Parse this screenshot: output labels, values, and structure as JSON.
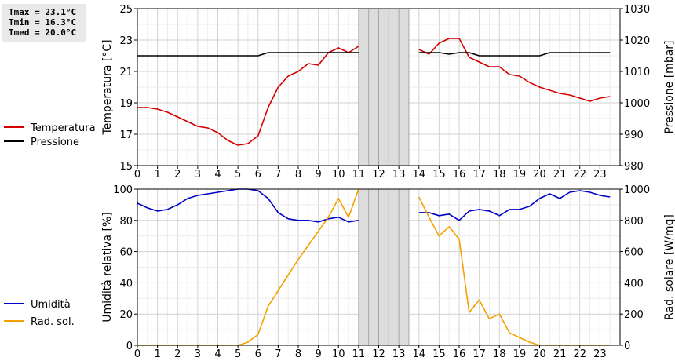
{
  "stats": {
    "tmax": "Tmax = 23.1°C",
    "tmin": "Tmin = 16.3°C",
    "tmed": "Tmed = 20.0°C"
  },
  "chart_data": [
    {
      "type": "line",
      "xlim": [
        0,
        24
      ],
      "x_ticks": [
        "0",
        "1",
        "2",
        "3",
        "4",
        "5",
        "6",
        "7",
        "8",
        "9",
        "10",
        "11",
        "12",
        "13",
        "14",
        "15",
        "16",
        "17",
        "18",
        "19",
        "20",
        "21",
        "22",
        "23"
      ],
      "gap": [
        11,
        13.5
      ],
      "ylabel": "Temperatura [°C]",
      "ylim": [
        15,
        25
      ],
      "y_ticks": [
        "15",
        "17",
        "19",
        "21",
        "23",
        "25"
      ],
      "y2label": "Pressione [mbar]",
      "y2lim": [
        980,
        1030
      ],
      "y2_ticks": [
        "980",
        "990",
        "1000",
        "1010",
        "1020",
        "1030"
      ],
      "grid": true,
      "series": [
        {
          "name": "Temperatura",
          "axis": "left",
          "color": "#d40000",
          "points": [
            [
              0,
              18.7
            ],
            [
              0.5,
              18.7
            ],
            [
              1,
              18.6
            ],
            [
              1.5,
              18.4
            ],
            [
              2,
              18.1
            ],
            [
              2.5,
              17.8
            ],
            [
              3,
              17.5
            ],
            [
              3.5,
              17.4
            ],
            [
              4,
              17.1
            ],
            [
              4.5,
              16.6
            ],
            [
              5,
              16.3
            ],
            [
              5.5,
              16.4
            ],
            [
              6,
              16.9
            ],
            [
              6.5,
              18.7
            ],
            [
              7,
              20.0
            ],
            [
              7.5,
              20.7
            ],
            [
              8,
              21.0
            ],
            [
              8.5,
              21.5
            ],
            [
              9,
              21.4
            ],
            [
              9.5,
              22.2
            ],
            [
              10,
              22.5
            ],
            [
              10.5,
              22.2
            ],
            [
              11,
              22.6
            ],
            null,
            [
              14,
              22.4
            ],
            [
              14.5,
              22.1
            ],
            [
              15,
              22.8
            ],
            [
              15.5,
              23.1
            ],
            [
              16,
              23.1
            ],
            [
              16.5,
              21.9
            ],
            [
              17,
              21.6
            ],
            [
              17.5,
              21.3
            ],
            [
              18,
              21.3
            ],
            [
              18.5,
              20.8
            ],
            [
              19,
              20.7
            ],
            [
              19.5,
              20.3
            ],
            [
              20,
              20.0
            ],
            [
              20.5,
              19.8
            ],
            [
              21,
              19.6
            ],
            [
              21.5,
              19.5
            ],
            [
              22,
              19.3
            ],
            [
              22.5,
              19.1
            ],
            [
              23,
              19.3
            ],
            [
              23.5,
              19.4
            ]
          ]
        },
        {
          "name": "Pressione",
          "axis": "right",
          "color": "#000000",
          "points": [
            [
              0,
              1015
            ],
            [
              6,
              1015
            ],
            [
              6.5,
              1016
            ],
            [
              11,
              1016
            ],
            null,
            [
              14,
              1016
            ],
            [
              15,
              1016
            ],
            [
              15.5,
              1015.5
            ],
            [
              16,
              1016
            ],
            [
              16.5,
              1016
            ],
            [
              17,
              1015
            ],
            [
              20,
              1015
            ],
            [
              20.5,
              1016
            ],
            [
              23.5,
              1016
            ]
          ]
        }
      ]
    },
    {
      "type": "line",
      "xlim": [
        0,
        24
      ],
      "x_ticks": [
        "0",
        "1",
        "2",
        "3",
        "4",
        "5",
        "6",
        "7",
        "8",
        "9",
        "10",
        "11",
        "12",
        "13",
        "14",
        "15",
        "16",
        "17",
        "18",
        "19",
        "20",
        "21",
        "22",
        "23"
      ],
      "gap": [
        11,
        13.5
      ],
      "ylabel": "Umidità relativa [%]",
      "ylim": [
        0,
        100
      ],
      "y_ticks": [
        "0",
        "20",
        "40",
        "60",
        "80",
        "100"
      ],
      "y2label": "Rad. solare [W/mq]",
      "y2lim": [
        0,
        1000
      ],
      "y2_ticks": [
        "0",
        "200",
        "400",
        "600",
        "800",
        "1000"
      ],
      "grid": true,
      "series": [
        {
          "name": "Umidità",
          "axis": "left",
          "color": "#0000c8",
          "points": [
            [
              0,
              91
            ],
            [
              0.5,
              88
            ],
            [
              1,
              86
            ],
            [
              1.5,
              87
            ],
            [
              2,
              90
            ],
            [
              2.5,
              94
            ],
            [
              3,
              96
            ],
            [
              3.5,
              97
            ],
            [
              4,
              98
            ],
            [
              4.5,
              99
            ],
            [
              5,
              100
            ],
            [
              5.5,
              100
            ],
            [
              6,
              99
            ],
            [
              6.5,
              94
            ],
            [
              7,
              85
            ],
            [
              7.5,
              81
            ],
            [
              8,
              80
            ],
            [
              8.5,
              80
            ],
            [
              9,
              79
            ],
            [
              9.5,
              81
            ],
            [
              10,
              82
            ],
            [
              10.5,
              79
            ],
            [
              11,
              80
            ],
            null,
            [
              14,
              85
            ],
            [
              14.5,
              85
            ],
            [
              15,
              83
            ],
            [
              15.5,
              84
            ],
            [
              16,
              80
            ],
            [
              16.5,
              86
            ],
            [
              17,
              87
            ],
            [
              17.5,
              86
            ],
            [
              18,
              83
            ],
            [
              18.5,
              87
            ],
            [
              19,
              87
            ],
            [
              19.5,
              89
            ],
            [
              20,
              94
            ],
            [
              20.5,
              97
            ],
            [
              21,
              94
            ],
            [
              21.5,
              98
            ],
            [
              22,
              99
            ],
            [
              22.5,
              98
            ],
            [
              23,
              96
            ],
            [
              23.5,
              95
            ]
          ]
        },
        {
          "name": "Rad. sol.",
          "axis": "right",
          "color": "#f5a000",
          "points": [
            [
              0,
              0
            ],
            [
              5,
              0
            ],
            [
              5.5,
              20
            ],
            [
              6,
              70
            ],
            [
              6.5,
              250
            ],
            [
              7,
              350
            ],
            [
              7.5,
              450
            ],
            [
              8,
              550
            ],
            [
              8.5,
              640
            ],
            [
              9,
              730
            ],
            [
              9.5,
              820
            ],
            [
              10,
              940
            ],
            [
              10.5,
              820
            ],
            [
              11,
              1000
            ],
            null,
            [
              14,
              950
            ],
            [
              14.5,
              820
            ],
            [
              15,
              700
            ],
            [
              15.5,
              760
            ],
            [
              16,
              680
            ],
            [
              16.5,
              210
            ],
            [
              17,
              290
            ],
            [
              17.5,
              170
            ],
            [
              18,
              200
            ],
            [
              18.5,
              80
            ],
            [
              19,
              50
            ],
            [
              19.5,
              20
            ],
            [
              20,
              0
            ],
            [
              23.5,
              0
            ]
          ]
        }
      ]
    }
  ]
}
